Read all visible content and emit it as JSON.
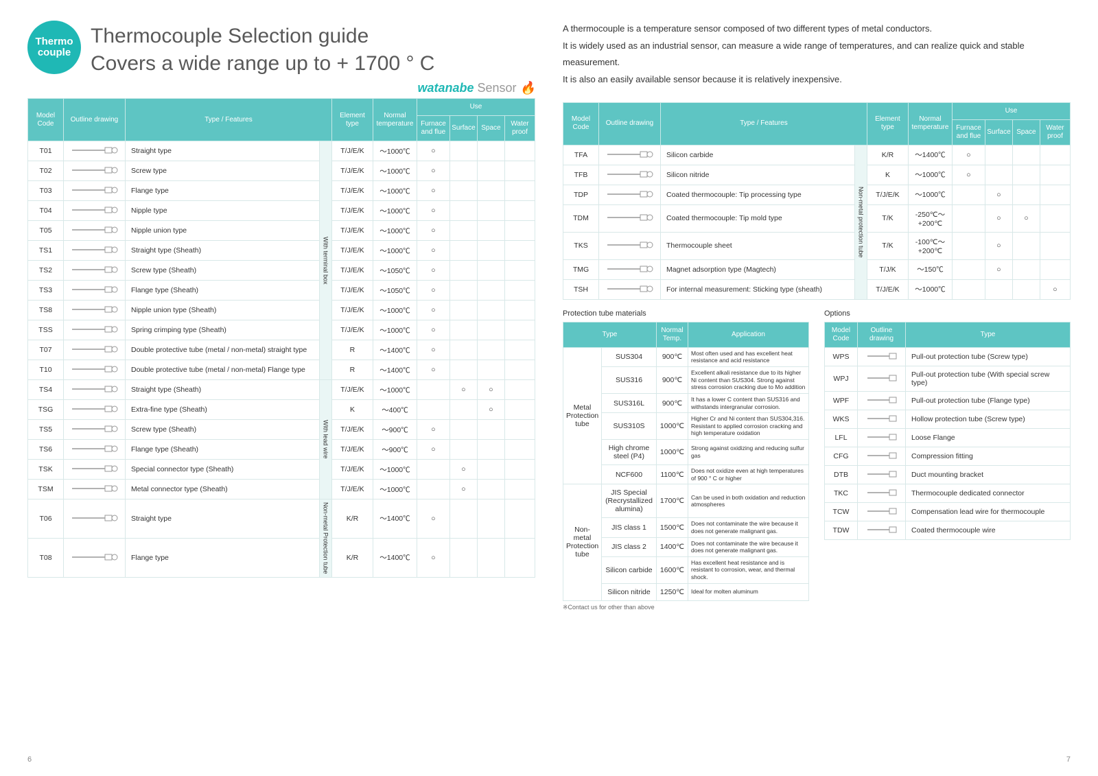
{
  "badge": "Thermo couple",
  "title1": "Thermocouple Selection guide",
  "title2": "Covers a wide range up to + 1700 ° C",
  "brand": "watanabe",
  "brand_suffix": "Sensor",
  "intro1": "A thermocouple is a temperature sensor composed of two different types of metal conductors.",
  "intro2": "It is widely used as an industrial sensor, can measure a wide range of temperatures, and can realize quick and stable measurement.",
  "intro3": "It is also an easily available sensor because it is relatively inexpensive.",
  "headers": {
    "model": "Model Code",
    "outline": "Outline drawing",
    "type": "Type / Features",
    "element": "Element type",
    "normal": "Normal temperature",
    "use": "Use",
    "furnace": "Furnace and flue",
    "surface": "Surface",
    "space": "Space",
    "water": "Water proof"
  },
  "groups": {
    "term": "With terminal box",
    "lead": "With lead wire",
    "nonmetal_tube": "Non-metal Protection tube",
    "nonmetal_v": "Non-metal protection tube"
  },
  "circle": "○",
  "t1": [
    {
      "c": "T01",
      "t": "Straight type",
      "e": "T/J/E/K",
      "n": "～1000℃",
      "u": [
        1,
        0,
        0,
        0
      ]
    },
    {
      "c": "T02",
      "t": "Screw type",
      "e": "T/J/E/K",
      "n": "～1000℃",
      "u": [
        1,
        0,
        0,
        0
      ]
    },
    {
      "c": "T03",
      "t": "Flange type",
      "e": "T/J/E/K",
      "n": "～1000℃",
      "u": [
        1,
        0,
        0,
        0
      ]
    },
    {
      "c": "T04",
      "t": "Nipple type",
      "e": "T/J/E/K",
      "n": "～1000℃",
      "u": [
        1,
        0,
        0,
        0
      ]
    },
    {
      "c": "T05",
      "t": "Nipple union type",
      "e": "T/J/E/K",
      "n": "～1000℃",
      "u": [
        1,
        0,
        0,
        0
      ]
    },
    {
      "c": "TS1",
      "t": "Straight type (Sheath)",
      "e": "T/J/E/K",
      "n": "～1000℃",
      "u": [
        1,
        0,
        0,
        0
      ]
    },
    {
      "c": "TS2",
      "t": "Screw type (Sheath)",
      "e": "T/J/E/K",
      "n": "～1050℃",
      "u": [
        1,
        0,
        0,
        0
      ]
    },
    {
      "c": "TS3",
      "t": "Flange type (Sheath)",
      "e": "T/J/E/K",
      "n": "～1050℃",
      "u": [
        1,
        0,
        0,
        0
      ]
    },
    {
      "c": "TS8",
      "t": "Nipple union type (Sheath)",
      "e": "T/J/E/K",
      "n": "～1000℃",
      "u": [
        1,
        0,
        0,
        0
      ]
    },
    {
      "c": "TSS",
      "t": "Spring crimping type (Sheath)",
      "e": "T/J/E/K",
      "n": "～1000℃",
      "u": [
        1,
        0,
        0,
        0
      ]
    },
    {
      "c": "T07",
      "t": "Double protective tube (metal / non-metal) straight type",
      "e": "R",
      "n": "～1400℃",
      "u": [
        1,
        0,
        0,
        0
      ]
    },
    {
      "c": "T10",
      "t": "Double protective tube (metal / non-metal) Flange type",
      "e": "R",
      "n": "～1400℃",
      "u": [
        1,
        0,
        0,
        0
      ]
    },
    {
      "c": "TS4",
      "t": "Straight type (Sheath)",
      "e": "T/J/E/K",
      "n": "～1000℃",
      "u": [
        0,
        1,
        1,
        0
      ]
    },
    {
      "c": "TSG",
      "t": "Extra-fine type (Sheath)",
      "e": "K",
      "n": "～400℃",
      "u": [
        0,
        0,
        1,
        0
      ]
    },
    {
      "c": "TS5",
      "t": "Screw type (Sheath)",
      "e": "T/J/E/K",
      "n": "～900℃",
      "u": [
        1,
        0,
        0,
        0
      ]
    },
    {
      "c": "TS6",
      "t": "Flange type (Sheath)",
      "e": "T/J/E/K",
      "n": "～900℃",
      "u": [
        1,
        0,
        0,
        0
      ]
    },
    {
      "c": "TSK",
      "t": "Special connector type (Sheath)",
      "e": "T/J/E/K",
      "n": "～1000℃",
      "u": [
        0,
        1,
        0,
        0
      ]
    },
    {
      "c": "TSM",
      "t": "Metal connector type (Sheath)",
      "e": "T/J/E/K",
      "n": "～1000℃",
      "u": [
        0,
        1,
        0,
        0
      ]
    },
    {
      "c": "T06",
      "t": "Straight type",
      "e": "K/R",
      "n": "～1400℃",
      "u": [
        1,
        0,
        0,
        0
      ]
    },
    {
      "c": "T08",
      "t": "Flange type",
      "e": "K/R",
      "n": "～1400℃",
      "u": [
        1,
        0,
        0,
        0
      ]
    }
  ],
  "t2": [
    {
      "c": "TFA",
      "t": "Silicon carbide",
      "e": "K/R",
      "n": "～1400℃",
      "u": [
        1,
        0,
        0,
        0
      ]
    },
    {
      "c": "TFB",
      "t": "Silicon nitride",
      "e": "K",
      "n": "～1000℃",
      "u": [
        1,
        0,
        0,
        0
      ]
    },
    {
      "c": "TDP",
      "t": "Coated thermocouple: Tip processing type",
      "e": "T/J/E/K",
      "n": "～1000℃",
      "u": [
        0,
        1,
        0,
        0
      ]
    },
    {
      "c": "TDM",
      "t": "Coated thermocouple: Tip mold type",
      "e": "T/K",
      "n": "-250℃～ +200℃",
      "u": [
        0,
        1,
        1,
        0
      ]
    },
    {
      "c": "TKS",
      "t": "Thermocouple sheet",
      "e": "T/K",
      "n": "-100℃～ +200℃",
      "u": [
        0,
        1,
        0,
        0
      ]
    },
    {
      "c": "TMG",
      "t": "Magnet adsorption type (Magtech)",
      "e": "T/J/K",
      "n": "～150℃",
      "u": [
        0,
        1,
        0,
        0
      ]
    },
    {
      "c": "TSH",
      "t": "For internal measurement: Sticking type (sheath)",
      "e": "T/J/E/K",
      "n": "～1000℃",
      "u": [
        0,
        0,
        0,
        1
      ]
    }
  ],
  "mat_title": "Protection tube materials",
  "mat_headers": {
    "type": "Type",
    "temp": "Normal Temp.",
    "app": "Application"
  },
  "mat_g1": "Metal Protection tube",
  "mat_g2": "Non-metal Protection tube",
  "mat1": [
    {
      "t": "SUS304",
      "n": "900℃",
      "a": "Most often used and has excellent heat resistance and acid resistance"
    },
    {
      "t": "SUS316",
      "n": "900℃",
      "a": "Excellent alkali resistance due to its higher Ni content than SUS304. Strong against stress corrosion cracking due to Mo addition"
    },
    {
      "t": "SUS316L",
      "n": "900℃",
      "a": "It has a lower C content than SUS316 and withstands intergranular corrosion."
    },
    {
      "t": "SUS310S",
      "n": "1000℃",
      "a": "Higher Cr and Ni content than SUS304,316. Resistant to applied corrosion cracking and high temperature oxidation"
    },
    {
      "t": "High chrome steel (P4)",
      "n": "1000℃",
      "a": "Strong against oxidizing and reducing sulfur gas"
    },
    {
      "t": "NCF600",
      "n": "1100℃",
      "a": "Does not oxidize even at high temperatures of 900 ° C or higher"
    }
  ],
  "mat2": [
    {
      "t": "JIS Special (Recrystallized alumina)",
      "n": "1700℃",
      "a": "Can be used in both oxidation and reduction atmospheres"
    },
    {
      "t": "JIS class 1",
      "n": "1500℃",
      "a": "Does not contaminate the wire because it does not generate malignant gas."
    },
    {
      "t": "JIS class 2",
      "n": "1400℃",
      "a": "Does not contaminate the wire because it does not generate malignant gas."
    },
    {
      "t": "Silicon carbide",
      "n": "1600℃",
      "a": "Has excellent heat resistance and is resistant to corrosion, wear, and thermal shock."
    },
    {
      "t": "Silicon nitride",
      "n": "1250℃",
      "a": "Ideal for molten aluminum"
    }
  ],
  "mat_note": "※Contact us for other than above",
  "opt_title": "Options",
  "opt_headers": {
    "model": "Model Code",
    "outline": "Outline drawing",
    "type": "Type"
  },
  "opts": [
    {
      "c": "WPS",
      "t": "Pull-out protection tube (Screw type)"
    },
    {
      "c": "WPJ",
      "t": "Pull-out protection tube (With special screw type)"
    },
    {
      "c": "WPF",
      "t": "Pull-out protection tube (Flange type)"
    },
    {
      "c": "WKS",
      "t": "Hollow protection tube (Screw type)"
    },
    {
      "c": "LFL",
      "t": "Loose Flange"
    },
    {
      "c": "CFG",
      "t": "Compression fitting"
    },
    {
      "c": "DTB",
      "t": "Duct mounting bracket"
    },
    {
      "c": "TKC",
      "t": "Thermocouple dedicated connector"
    },
    {
      "c": "TCW",
      "t": "Compensation lead wire for thermocouple"
    },
    {
      "c": "TDW",
      "t": "Coated thermocouple wire"
    }
  ],
  "page_left": "6",
  "page_right": "7"
}
